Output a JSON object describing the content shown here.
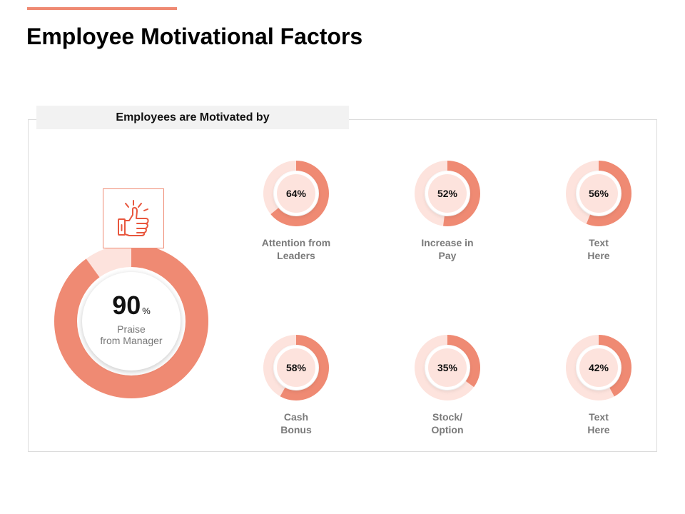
{
  "page": {
    "title": "Employee Motivational Factors"
  },
  "panel": {
    "header": "Employees are Motivated by"
  },
  "colors": {
    "accent": "#ef8a73",
    "track": "#fde3dd",
    "header_bg": "#f2f2f2"
  },
  "main_metric": {
    "value": "90",
    "unit": "%",
    "label_line1": "Praise",
    "label_line2": "from Manager",
    "icon": "thumbs-up-icon"
  },
  "chart_data": {
    "type": "donut",
    "title": "Employees are Motivated by",
    "main": {
      "label": "Praise from Manager",
      "value": 90
    },
    "items": [
      {
        "value": 64,
        "display": "64%",
        "line1": "Attention from",
        "line2": "Leaders"
      },
      {
        "value": 52,
        "display": "52%",
        "line1": "Increase in",
        "line2": "Pay"
      },
      {
        "value": 56,
        "display": "56%",
        "line1": "Text",
        "line2": "Here"
      },
      {
        "value": 58,
        "display": "58%",
        "line1": "Cash",
        "line2": "Bonus"
      },
      {
        "value": 35,
        "display": "35%",
        "line1": "Stock/",
        "line2": "Option"
      },
      {
        "value": 42,
        "display": "42%",
        "line1": "Text",
        "line2": "Here"
      }
    ]
  }
}
